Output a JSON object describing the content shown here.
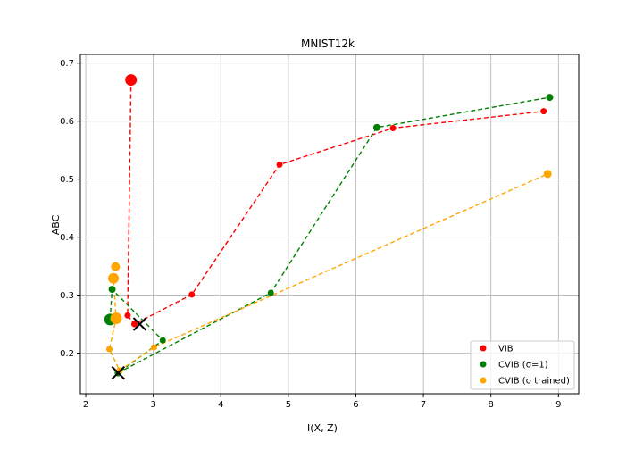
{
  "chart_data": {
    "type": "scatter",
    "title": "MNIST12k",
    "xlabel": "I(X, Z)",
    "ylabel": "ABC",
    "xlim": [
      1.92,
      9.3
    ],
    "ylim": [
      0.13,
      0.715
    ],
    "xticks": [
      2,
      3,
      4,
      5,
      6,
      7,
      8,
      9
    ],
    "yticks": [
      0.2,
      0.3,
      0.4,
      0.5,
      0.6,
      0.7
    ],
    "grid": true,
    "legend_position": "bottom-right",
    "series": [
      {
        "name": "VIB",
        "color": "#ff0000",
        "points": [
          {
            "x": 2.67,
            "y": 0.671,
            "size": 13
          },
          {
            "x": 2.62,
            "y": 0.265,
            "size": 7
          },
          {
            "x": 2.72,
            "y": 0.25,
            "size": 7
          },
          {
            "x": 3.57,
            "y": 0.301,
            "size": 7
          },
          {
            "x": 4.87,
            "y": 0.525,
            "size": 7
          },
          {
            "x": 6.55,
            "y": 0.588,
            "size": 7
          },
          {
            "x": 8.78,
            "y": 0.617,
            "size": 7
          }
        ]
      },
      {
        "name": "CVIB (σ=1)",
        "color": "#008000",
        "points": [
          {
            "x": 2.36,
            "y": 0.258,
            "size": 13
          },
          {
            "x": 2.39,
            "y": 0.31,
            "size": 8
          },
          {
            "x": 3.14,
            "y": 0.222,
            "size": 7
          },
          {
            "x": 2.48,
            "y": 0.166,
            "size": 8
          },
          {
            "x": 4.74,
            "y": 0.304,
            "size": 7
          },
          {
            "x": 6.31,
            "y": 0.589,
            "size": 8
          },
          {
            "x": 8.87,
            "y": 0.641,
            "size": 8
          }
        ]
      },
      {
        "name": "CVIB (σ trained)",
        "color": "#ffa500",
        "points": [
          {
            "x": 2.44,
            "y": 0.349,
            "size": 10
          },
          {
            "x": 2.41,
            "y": 0.329,
            "size": 12
          },
          {
            "x": 2.45,
            "y": 0.26,
            "size": 13
          },
          {
            "x": 2.35,
            "y": 0.207,
            "size": 7
          },
          {
            "x": 2.5,
            "y": 0.17,
            "size": 7
          },
          {
            "x": 3.01,
            "y": 0.21,
            "size": 7
          },
          {
            "x": 8.84,
            "y": 0.509,
            "size": 9
          }
        ]
      }
    ],
    "x_markers": [
      {
        "x": 2.8,
        "y": 0.25
      },
      {
        "x": 2.48,
        "y": 0.166
      }
    ]
  }
}
